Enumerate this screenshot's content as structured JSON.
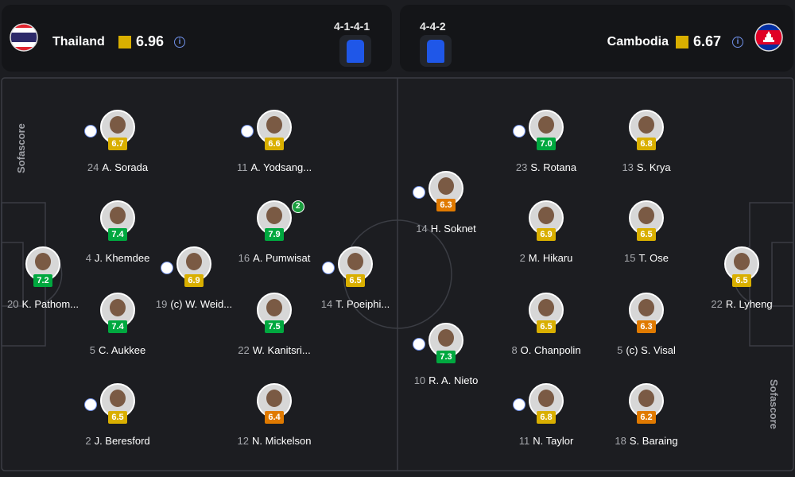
{
  "header": {
    "home": {
      "name": "Thailand",
      "rating": "6.96",
      "formation": "4-1-4-1"
    },
    "away": {
      "name": "Cambodia",
      "rating": "6.67",
      "formation": "4-4-2"
    }
  },
  "watermark": "Sofascore",
  "home_players": [
    {
      "number": "24",
      "name": "A. Sorada",
      "rating": "6.7"
    },
    {
      "number": "11",
      "name": "A. Yodsang...",
      "rating": "6.6"
    },
    {
      "number": "4",
      "name": "J. Khemdee",
      "rating": "7.4"
    },
    {
      "number": "16",
      "name": "A. Pumwisat",
      "rating": "7.9",
      "badge": "2"
    },
    {
      "number": "20",
      "name": "K. Pathom...",
      "rating": "7.2"
    },
    {
      "number": "19",
      "name": "(c) W. Weid...",
      "rating": "6.9"
    },
    {
      "number": "14",
      "name": "T. Poeiphi...",
      "rating": "6.5"
    },
    {
      "number": "5",
      "name": "C. Aukkee",
      "rating": "7.4"
    },
    {
      "number": "22",
      "name": "W. Kanitsri...",
      "rating": "7.5"
    },
    {
      "number": "2",
      "name": "J. Beresford",
      "rating": "6.5"
    },
    {
      "number": "12",
      "name": "N. Mickelson",
      "rating": "6.4"
    }
  ],
  "away_players": [
    {
      "number": "14",
      "name": "H. Soknet",
      "rating": "6.3"
    },
    {
      "number": "23",
      "name": "S. Rotana",
      "rating": "7.0"
    },
    {
      "number": "13",
      "name": "S. Krya",
      "rating": "6.8"
    },
    {
      "number": "2",
      "name": "M. Hikaru",
      "rating": "6.9"
    },
    {
      "number": "15",
      "name": "T. Ose",
      "rating": "6.5"
    },
    {
      "number": "22",
      "name": "R. Lyheng",
      "rating": "6.5"
    },
    {
      "number": "8",
      "name": "O. Chanpolin",
      "rating": "6.5"
    },
    {
      "number": "5",
      "name": "(c) S. Visal",
      "rating": "6.3"
    },
    {
      "number": "10",
      "name": "R. A. Nieto",
      "rating": "7.3"
    },
    {
      "number": "11",
      "name": "N. Taylor",
      "rating": "6.8"
    },
    {
      "number": "18",
      "name": "S. Baraing",
      "rating": "6.2"
    }
  ]
}
